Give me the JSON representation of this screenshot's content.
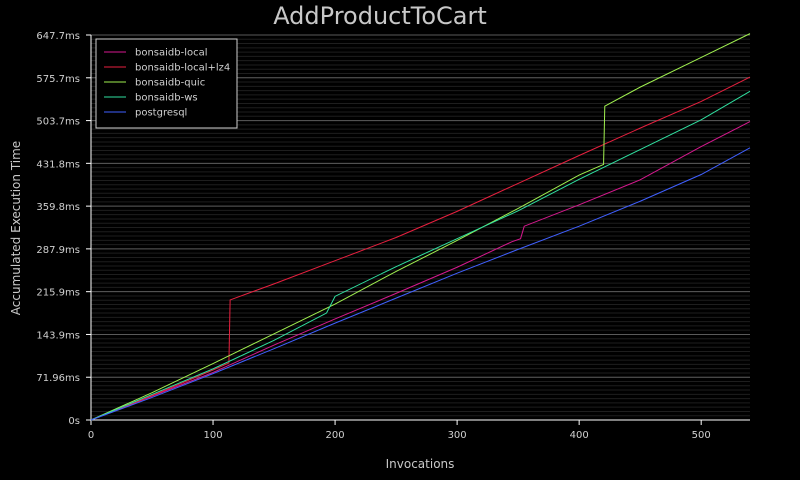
{
  "chart_data": {
    "type": "line",
    "title": "AddProductToCart",
    "xlabel": "Invocations",
    "ylabel": "Accumulated Execution Time",
    "xlim": [
      0,
      540
    ],
    "ylim_ms": [
      0,
      647.7
    ],
    "x_ticks": [
      0,
      100,
      200,
      300,
      400,
      500
    ],
    "y_ticks": [
      {
        "value": 0,
        "label": "0s"
      },
      {
        "value": 71.96,
        "label": "71.96ms"
      },
      {
        "value": 143.9,
        "label": "143.9ms"
      },
      {
        "value": 215.9,
        "label": "215.9ms"
      },
      {
        "value": 287.9,
        "label": "287.9ms"
      },
      {
        "value": 359.8,
        "label": "359.8ms"
      },
      {
        "value": 431.8,
        "label": "431.8ms"
      },
      {
        "value": 503.7,
        "label": "503.7ms"
      },
      {
        "value": 575.7,
        "label": "575.7ms"
      },
      {
        "value": 647.7,
        "label": "647.7ms"
      }
    ],
    "legend_position": "top-left",
    "grid": true,
    "series": [
      {
        "name": "bonsaidb-local",
        "color": "#d7198f",
        "points": [
          [
            0,
            0
          ],
          [
            50,
            40
          ],
          [
            100,
            80
          ],
          [
            113,
            92
          ],
          [
            150,
            126
          ],
          [
            200,
            170
          ],
          [
            250,
            213
          ],
          [
            300,
            257
          ],
          [
            345,
            300
          ],
          [
            352,
            305
          ],
          [
            355,
            326
          ],
          [
            400,
            362
          ],
          [
            450,
            404
          ],
          [
            500,
            460
          ],
          [
            540,
            502
          ]
        ]
      },
      {
        "name": "bonsaidb-local+lz4",
        "color": "#e8203f",
        "points": [
          [
            0,
            0
          ],
          [
            50,
            41
          ],
          [
            100,
            84
          ],
          [
            113,
            96
          ],
          [
            114,
            202
          ],
          [
            150,
            229
          ],
          [
            200,
            268
          ],
          [
            250,
            307
          ],
          [
            300,
            351
          ],
          [
            350,
            398
          ],
          [
            400,
            445
          ],
          [
            450,
            491
          ],
          [
            500,
            536
          ],
          [
            540,
            577
          ]
        ]
      },
      {
        "name": "bonsaidb-quic",
        "color": "#a0f050",
        "points": [
          [
            0,
            0
          ],
          [
            50,
            46
          ],
          [
            100,
            95
          ],
          [
            150,
            145
          ],
          [
            200,
            195
          ],
          [
            250,
            250
          ],
          [
            300,
            302
          ],
          [
            350,
            356
          ],
          [
            400,
            412
          ],
          [
            420,
            430
          ],
          [
            421,
            528
          ],
          [
            450,
            560
          ],
          [
            500,
            610
          ],
          [
            540,
            650
          ]
        ]
      },
      {
        "name": "bonsaidb-ws",
        "color": "#30e0a0",
        "points": [
          [
            0,
            0
          ],
          [
            50,
            43
          ],
          [
            100,
            86
          ],
          [
            150,
            134
          ],
          [
            193,
            180
          ],
          [
            200,
            208
          ],
          [
            250,
            258
          ],
          [
            300,
            305
          ],
          [
            350,
            352
          ],
          [
            400,
            405
          ],
          [
            450,
            455
          ],
          [
            500,
            505
          ],
          [
            540,
            553
          ]
        ]
      },
      {
        "name": "postgresql",
        "color": "#4060ff",
        "points": [
          [
            0,
            0
          ],
          [
            50,
            38
          ],
          [
            100,
            78
          ],
          [
            150,
            120
          ],
          [
            200,
            163
          ],
          [
            250,
            205
          ],
          [
            300,
            247
          ],
          [
            350,
            287
          ],
          [
            400,
            326
          ],
          [
            450,
            368
          ],
          [
            500,
            413
          ],
          [
            540,
            458
          ]
        ]
      }
    ]
  }
}
